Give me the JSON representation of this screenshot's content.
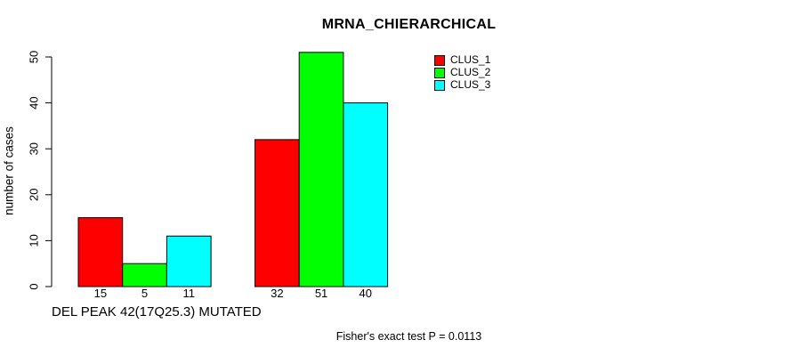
{
  "chart_data": {
    "type": "bar",
    "title": "MRNA_CHIERARCHICAL",
    "ylabel": "number of cases",
    "xlabel": "DEL PEAK 42(17Q25.3) MUTATED",
    "footer": "Fisher's exact test P = 0.0113",
    "ylim": [
      0,
      50
    ],
    "yticks": [
      0,
      10,
      20,
      30,
      40,
      50
    ],
    "series": [
      {
        "name": "CLUS_1",
        "color": "#ff0000",
        "values": [
          15,
          32
        ]
      },
      {
        "name": "CLUS_2",
        "color": "#00ff00",
        "values": [
          5,
          51
        ]
      },
      {
        "name": "CLUS_3",
        "color": "#00ffff",
        "values": [
          11,
          40
        ]
      }
    ],
    "bar_labels": [
      [
        "15",
        "5",
        "11"
      ],
      [
        "32",
        "51",
        "40"
      ]
    ],
    "legend_position": "top-right",
    "grid": false,
    "background": "#ffffff",
    "axis_color": "#000000",
    "text_color": "#000000",
    "bar_border_color": "#000000"
  }
}
